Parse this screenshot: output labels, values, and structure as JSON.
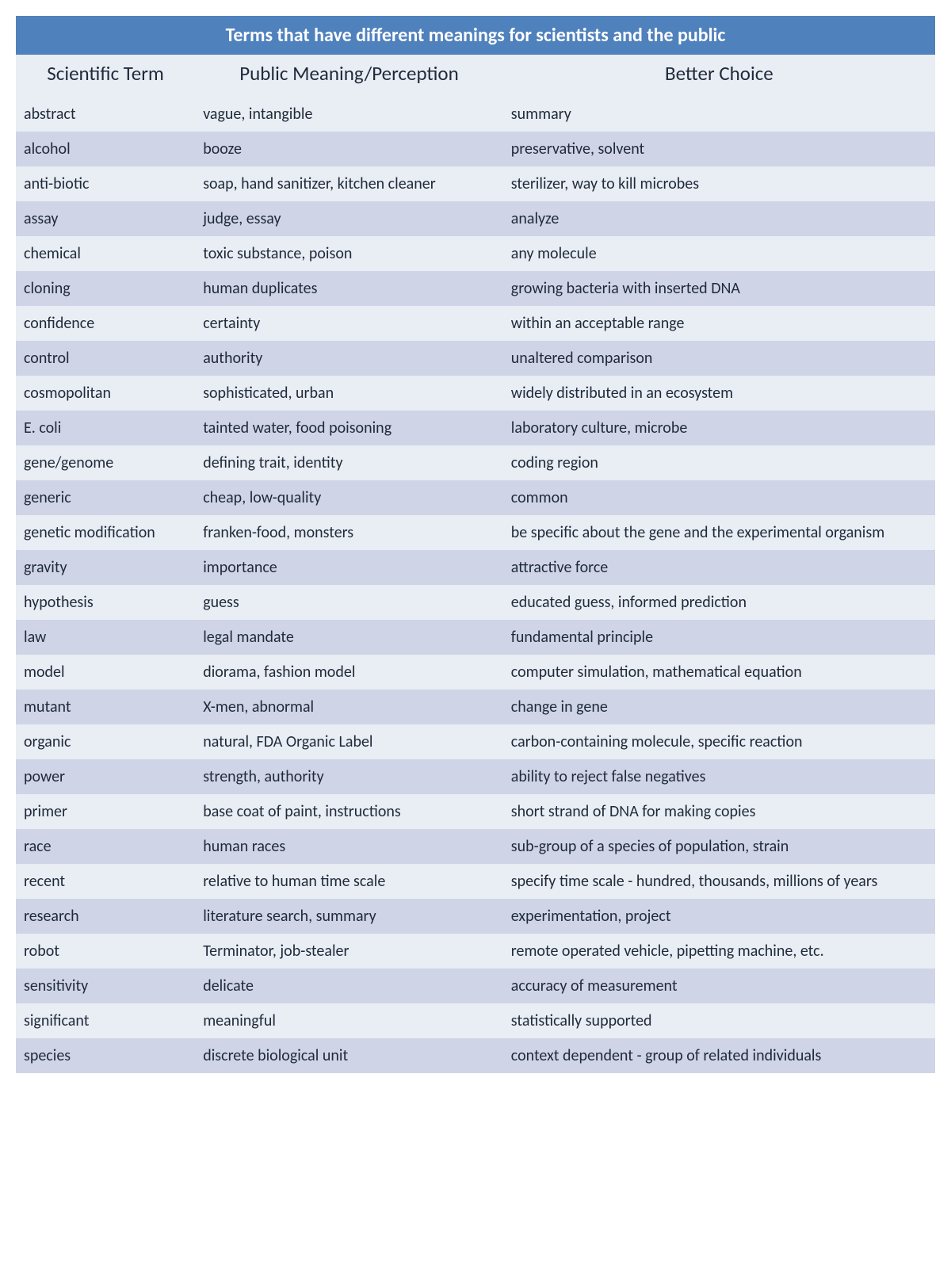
{
  "title": "Terms that have different meanings for scientists and the public",
  "columns": [
    "Scientific Term",
    "Public Meaning/Perception",
    "Better Choice"
  ],
  "rows": [
    [
      "abstract",
      "vague, intangible",
      "summary"
    ],
    [
      "alcohol",
      "booze",
      "preservative, solvent"
    ],
    [
      "anti-biotic",
      "soap, hand sanitizer, kitchen cleaner",
      "sterilizer, way to kill microbes"
    ],
    [
      "assay",
      "judge, essay",
      "analyze"
    ],
    [
      "chemical",
      "toxic substance, poison",
      "any molecule"
    ],
    [
      "cloning",
      "human duplicates",
      "growing bacteria with inserted DNA"
    ],
    [
      "confidence",
      "certainty",
      "within an acceptable range"
    ],
    [
      "control",
      "authority",
      "unaltered comparison"
    ],
    [
      "cosmopolitan",
      "sophisticated, urban",
      "widely distributed in an ecosystem"
    ],
    [
      "E. coli",
      "tainted water, food poisoning",
      "laboratory culture, microbe"
    ],
    [
      "gene/genome",
      "defining trait, identity",
      "coding region"
    ],
    [
      "generic",
      "cheap, low-quality",
      "common"
    ],
    [
      "genetic modification",
      "franken-food, monsters",
      "be specific about the gene and the experimental organism"
    ],
    [
      "gravity",
      "importance",
      "attractive force"
    ],
    [
      "hypothesis",
      "guess",
      "educated guess, informed prediction"
    ],
    [
      "law",
      "legal mandate",
      "fundamental principle"
    ],
    [
      "model",
      "diorama, fashion model",
      "computer simulation, mathematical equation"
    ],
    [
      "mutant",
      "X-men, abnormal",
      "change in gene"
    ],
    [
      "organic",
      "natural, FDA Organic Label",
      "carbon-containing molecule, specific reaction"
    ],
    [
      "power",
      "strength, authority",
      "ability to reject false negatives"
    ],
    [
      "primer",
      "base coat of paint, instructions",
      "short strand of DNA for making copies"
    ],
    [
      "race",
      "human races",
      "sub-group of a species of population, strain"
    ],
    [
      "recent",
      "relative to human time scale",
      "specify time scale - hundred, thousands, millions of years"
    ],
    [
      "research",
      "literature search, summary",
      "experimentation, project"
    ],
    [
      "robot",
      "Terminator, job-stealer",
      "remote operated vehicle, pipetting machine, etc."
    ],
    [
      "sensitivity",
      "delicate",
      "accuracy of measurement"
    ],
    [
      "significant",
      "meaningful",
      "statistically supported"
    ],
    [
      "species",
      "discrete biological unit",
      "context dependent - group of related individuals"
    ]
  ],
  "style": {
    "title_bg": "#4f81bd",
    "title_color": "#ffffff",
    "title_fontsize": "24px",
    "header_bg": "#e9edf4",
    "header_color": "#1f2a3a",
    "header_fontsize": "25px",
    "row_bg_even": "#e9edf4",
    "row_bg_odd": "#cfd5e7",
    "cell_color": "#1f2a3a",
    "cell_fontsize": "20px"
  }
}
